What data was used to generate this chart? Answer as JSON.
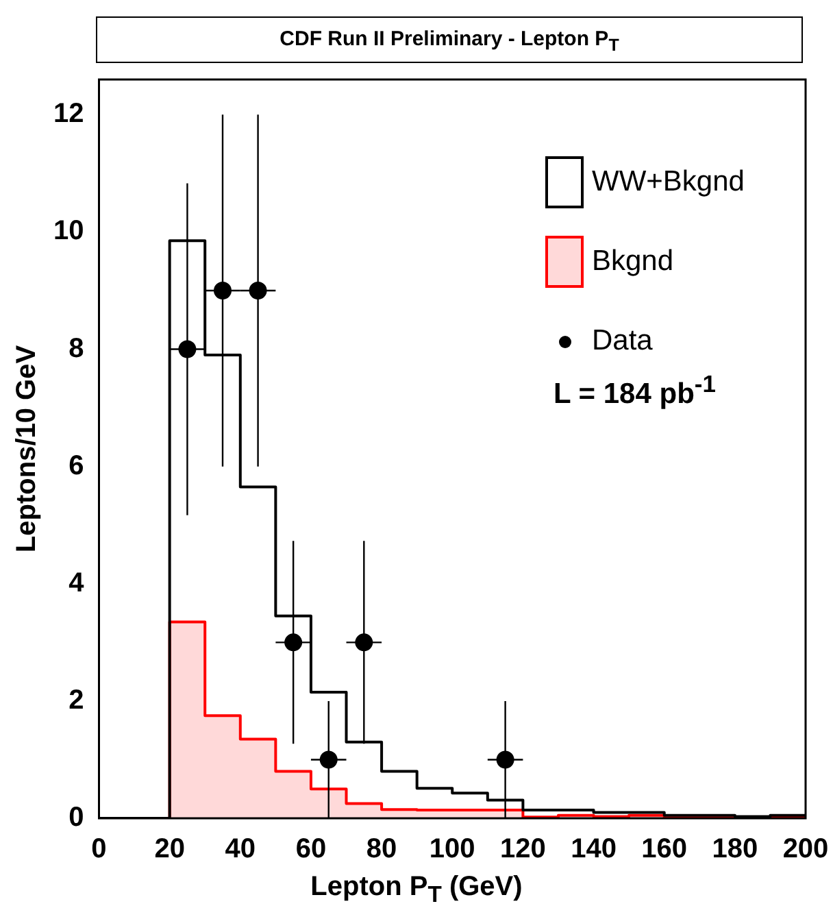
{
  "chart_data": {
    "type": "histogram",
    "title": "CDF Run II Preliminary - Lepton P$_{T}$",
    "xlabel": "Lepton P$_{T}$ (GeV)",
    "ylabel": "Leptons/10 GeV",
    "bins": [
      0,
      10,
      20,
      30,
      40,
      50,
      60,
      70,
      80,
      90,
      100,
      110,
      120,
      130,
      140,
      150,
      160,
      170,
      180,
      190,
      200
    ],
    "series": [
      {
        "name": "WW+Bkgnd",
        "color": "#000000",
        "values": [
          0,
          0,
          9.85,
          7.9,
          5.65,
          3.45,
          2.15,
          1.3,
          0.8,
          0.51,
          0.43,
          0.31,
          0.14,
          0.14,
          0.1,
          0.1,
          0.05,
          0.05,
          0.03,
          0.05
        ]
      },
      {
        "name": "Bkgnd",
        "color": "#ff0000",
        "values": [
          0,
          0,
          3.35,
          1.75,
          1.35,
          0.8,
          0.5,
          0.25,
          0.15,
          0.14,
          0.14,
          0.14,
          0.02,
          0.05,
          0.03,
          0.05,
          0.01,
          0.01,
          0.01,
          0.03
        ]
      },
      {
        "name": "Data",
        "type": "scatter",
        "color": "#000000",
        "x": [
          25,
          35,
          45,
          55,
          65,
          75,
          115
        ],
        "values": [
          8,
          9,
          9,
          3,
          1,
          3,
          1
        ],
        "errors": [
          2.83,
          3,
          3,
          1.73,
          1,
          1.73,
          1
        ],
        "xerrors": [
          5,
          5,
          5,
          5,
          5,
          5,
          5
        ],
        "marker": "circle"
      }
    ],
    "xlim": [
      0,
      200
    ],
    "xticks": [
      0,
      20,
      40,
      60,
      80,
      100,
      120,
      140,
      160,
      180,
      200
    ],
    "ylim": [
      0,
      12.6
    ],
    "yticks": [
      0,
      2,
      4,
      6,
      8,
      10,
      12
    ],
    "grid": false,
    "legend": "top right",
    "annotations": [
      "L = 184 pb$^{-1}$"
    ]
  }
}
